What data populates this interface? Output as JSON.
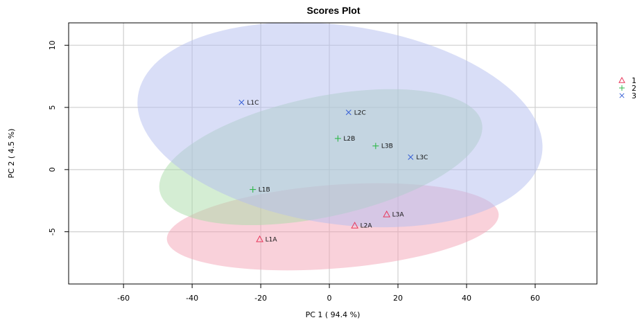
{
  "chart_data": {
    "type": "scatter",
    "title": "Scores Plot",
    "xlabel": "PC 1 ( 94.4 %)",
    "ylabel": "PC 2 ( 4.5 %)",
    "xlim": [
      -76,
      78
    ],
    "ylim": [
      -9.2,
      11.8
    ],
    "xticks": [
      -60,
      -40,
      -20,
      0,
      20,
      40,
      60
    ],
    "yticks": [
      -5,
      0,
      5,
      10
    ],
    "grid": true,
    "legend_position": "right",
    "groups": [
      {
        "name": "1",
        "marker": "triangle",
        "color": "#e8365a",
        "fill": "#f4a3b6",
        "points": [
          {
            "label": "L1A",
            "x": -20.3,
            "y": -5.6
          },
          {
            "label": "L2A",
            "x": 7.4,
            "y": -4.5
          },
          {
            "label": "L3A",
            "x": 16.7,
            "y": -3.6
          }
        ],
        "ellipse": {
          "cx": 1.0,
          "cy": -4.6,
          "rx": 48.5,
          "ry": 0.8,
          "angle": 4.4
        }
      },
      {
        "name": "2",
        "marker": "plus",
        "color": "#2fb84a",
        "fill": "#a9dca8",
        "points": [
          {
            "label": "L1B",
            "x": -22.3,
            "y": -1.6
          },
          {
            "label": "L2B",
            "x": 2.5,
            "y": 2.5
          },
          {
            "label": "L3B",
            "x": 13.5,
            "y": 1.9
          }
        ],
        "ellipse": {
          "cx": -2.5,
          "cy": 1.0,
          "rx": 48.0,
          "ry": 1.15,
          "angle": 12.0
        }
      },
      {
        "name": "3",
        "marker": "x",
        "color": "#3b63d6",
        "fill": "#b3bdf0",
        "points": [
          {
            "label": "L1C",
            "x": -25.6,
            "y": 5.4
          },
          {
            "label": "L2C",
            "x": 5.6,
            "y": 4.6
          },
          {
            "label": "L3C",
            "x": 23.7,
            "y": 1.0
          }
        ],
        "ellipse": {
          "cx": 3.1,
          "cy": 3.6,
          "rx": 59.5,
          "ry": 1.9,
          "angle": -8.2
        }
      }
    ]
  }
}
